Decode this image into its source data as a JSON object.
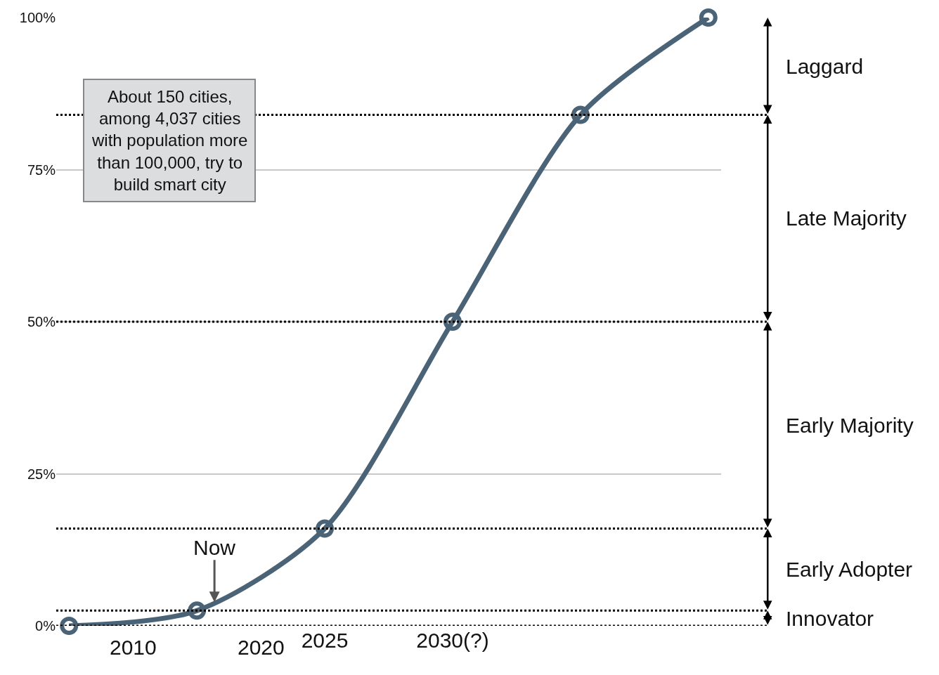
{
  "chart_data": {
    "type": "line",
    "categories": [
      null,
      null,
      "2025",
      "2030(?)",
      null,
      null
    ],
    "series": [
      {
        "color": "#4a6377",
        "values": [
          0,
          2.5,
          16,
          50,
          84,
          100
        ]
      }
    ],
    "ylim": [
      0,
      100
    ],
    "yticks": [
      {
        "value": 0,
        "label": "0%"
      },
      {
        "value": 25,
        "label": "25%"
      },
      {
        "value": 50,
        "label": "50%"
      },
      {
        "value": 75,
        "label": "75%"
      },
      {
        "value": 100,
        "label": "100%"
      }
    ],
    "grid": "y",
    "marker": "circle",
    "line_style": "solid",
    "ref_lines": [
      {
        "axis": "y",
        "value": 0,
        "line_style": "dotted",
        "color": "#000000"
      },
      {
        "axis": "y",
        "value": 2.5,
        "line_style": "dotted",
        "color": "#000000"
      },
      {
        "axis": "y",
        "value": 16,
        "line_style": "dotted",
        "color": "#000000"
      },
      {
        "axis": "y",
        "value": 50,
        "line_style": "dotted",
        "color": "#000000"
      },
      {
        "axis": "y",
        "value": 84,
        "line_style": "dotted",
        "color": "#000000"
      }
    ],
    "annotations": [
      "About 150 cities,\namong 4,037 cities\nwith population more\nthan 100,000, try to\nbuild smart city",
      {
        "text": "Now",
        "y": 2.5
      },
      "2010",
      "2020",
      "Laggard",
      "Late Majority",
      "Early Majority",
      "Early Adopter",
      "Innovator"
    ],
    "legend": false
  }
}
